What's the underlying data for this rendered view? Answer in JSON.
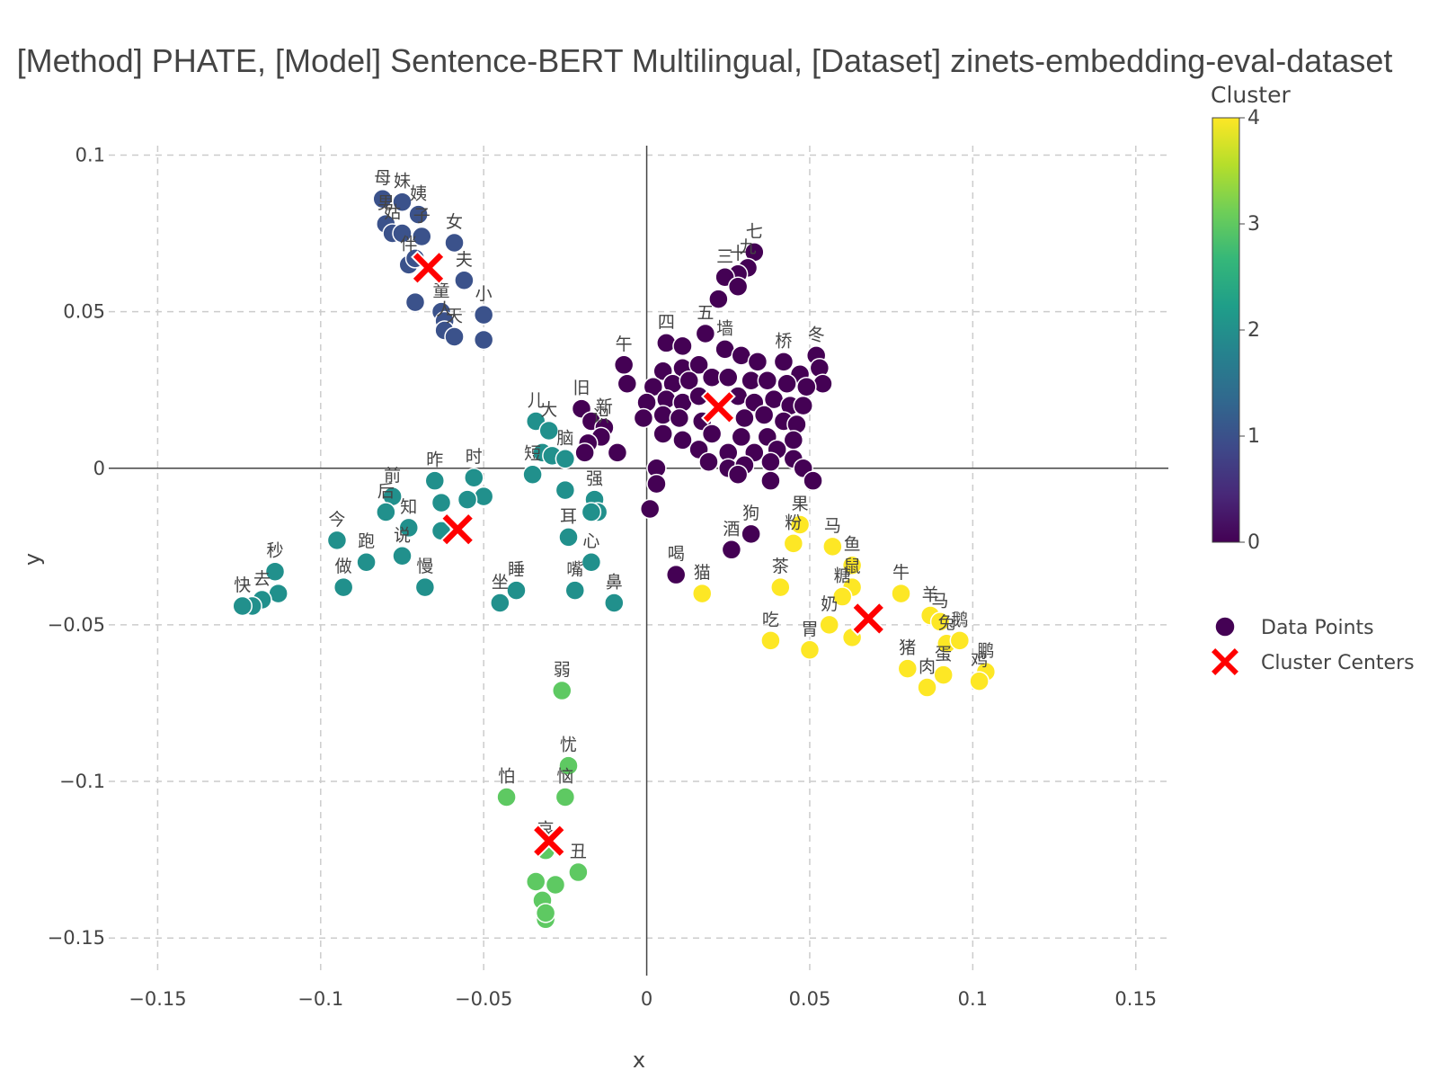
{
  "chart_data": {
    "type": "scatter",
    "title": "[Method] PHATE, [Model] Sentence-BERT Multilingual, [Dataset] zinets-embedding-eval-dataset",
    "xlabel": "x",
    "ylabel": "y",
    "xlim": [
      -0.165,
      0.16
    ],
    "ylim": [
      -0.162,
      0.103
    ],
    "x_ticks": [
      -0.15,
      -0.1,
      -0.05,
      0,
      0.05,
      0.1,
      0.15
    ],
    "x_tick_labels": [
      "−0.15",
      "−0.1",
      "−0.05",
      "0",
      "0.05",
      "0.1",
      "0.15"
    ],
    "y_ticks": [
      0.1,
      0.05,
      0,
      -0.05,
      -0.1,
      -0.15
    ],
    "y_tick_labels": [
      "0.1",
      "0.05",
      "0",
      "−0.05",
      "−0.1",
      "−0.15"
    ],
    "grid": true,
    "legend": [
      {
        "name": "Data Points",
        "marker": "circle",
        "color": "#440154"
      },
      {
        "name": "Cluster Centers",
        "marker": "x",
        "color": "#ff0000"
      }
    ],
    "legend_position": "right",
    "colorbar": {
      "title": "Cluster",
      "min": 0,
      "max": 4,
      "tick_labels": [
        "0",
        "1",
        "2",
        "3",
        "4"
      ],
      "colorscale": [
        "#440154",
        "#482878",
        "#3e4989",
        "#31688e",
        "#26828e",
        "#1f9e89",
        "#35b779",
        "#6ece58",
        "#b5de2b",
        "#fde725"
      ]
    },
    "cluster_colors": [
      "#440154",
      "#3b528b",
      "#21908c",
      "#5ec962",
      "#fde725"
    ],
    "marker_outline": "#ffffff",
    "center_color": "#ff0000",
    "centers": [
      {
        "cluster": 0,
        "x": 0.022,
        "y": 0.0195
      },
      {
        "cluster": 1,
        "x": -0.067,
        "y": 0.064
      },
      {
        "cluster": 2,
        "x": -0.058,
        "y": -0.0195
      },
      {
        "cluster": 3,
        "x": -0.03,
        "y": -0.119
      },
      {
        "cluster": 4,
        "x": 0.068,
        "y": -0.048
      }
    ],
    "points": [
      {
        "label": "母",
        "x": -0.081,
        "y": 0.086,
        "c": 1
      },
      {
        "label": "妹",
        "x": -0.075,
        "y": 0.085,
        "c": 1
      },
      {
        "label": "姨",
        "x": -0.07,
        "y": 0.081,
        "c": 1
      },
      {
        "label": "男",
        "x": -0.08,
        "y": 0.078,
        "c": 1
      },
      {
        "label": "姑",
        "x": -0.078,
        "y": 0.075,
        "c": 1
      },
      {
        "label": "",
        "x": -0.075,
        "y": 0.075,
        "c": 1
      },
      {
        "label": "子",
        "x": -0.069,
        "y": 0.074,
        "c": 1
      },
      {
        "label": "女",
        "x": -0.059,
        "y": 0.072,
        "c": 1
      },
      {
        "label": "伴",
        "x": -0.073,
        "y": 0.065,
        "c": 1
      },
      {
        "label": "",
        "x": -0.071,
        "y": 0.067,
        "c": 1
      },
      {
        "label": "夫",
        "x": -0.056,
        "y": 0.06,
        "c": 1
      },
      {
        "label": "",
        "x": -0.071,
        "y": 0.053,
        "c": 1
      },
      {
        "label": "童",
        "x": -0.063,
        "y": 0.05,
        "c": 1
      },
      {
        "label": "",
        "x": -0.062,
        "y": 0.047,
        "c": 1
      },
      {
        "label": "人",
        "x": -0.062,
        "y": 0.044,
        "c": 1
      },
      {
        "label": "天",
        "x": -0.059,
        "y": 0.042,
        "c": 1
      },
      {
        "label": "小",
        "x": -0.05,
        "y": 0.049,
        "c": 1
      },
      {
        "label": "",
        "x": -0.05,
        "y": 0.041,
        "c": 1
      },
      {
        "label": "七",
        "x": 0.033,
        "y": 0.069,
        "c": 0
      },
      {
        "label": "九",
        "x": 0.031,
        "y": 0.064,
        "c": 0
      },
      {
        "label": "十",
        "x": 0.028,
        "y": 0.062,
        "c": 0
      },
      {
        "label": "三",
        "x": 0.024,
        "y": 0.061,
        "c": 0
      },
      {
        "label": "",
        "x": 0.028,
        "y": 0.058,
        "c": 0
      },
      {
        "label": "",
        "x": 0.022,
        "y": 0.054,
        "c": 0
      },
      {
        "label": "五",
        "x": 0.018,
        "y": 0.043,
        "c": 0
      },
      {
        "label": "四",
        "x": 0.006,
        "y": 0.04,
        "c": 0
      },
      {
        "label": "",
        "x": 0.011,
        "y": 0.039,
        "c": 0
      },
      {
        "label": "午",
        "x": -0.007,
        "y": 0.033,
        "c": 0
      },
      {
        "label": "",
        "x": 0.005,
        "y": 0.031,
        "c": 0
      },
      {
        "label": "",
        "x": 0.011,
        "y": 0.032,
        "c": 0
      },
      {
        "label": "",
        "x": 0.016,
        "y": 0.033,
        "c": 0
      },
      {
        "label": "墙",
        "x": 0.024,
        "y": 0.038,
        "c": 0
      },
      {
        "label": "",
        "x": 0.029,
        "y": 0.036,
        "c": 0
      },
      {
        "label": "",
        "x": 0.034,
        "y": 0.034,
        "c": 0
      },
      {
        "label": "桥",
        "x": 0.042,
        "y": 0.034,
        "c": 0
      },
      {
        "label": "冬",
        "x": 0.052,
        "y": 0.036,
        "c": 0
      },
      {
        "label": "",
        "x": 0.053,
        "y": 0.032,
        "c": 0
      },
      {
        "label": "",
        "x": 0.047,
        "y": 0.03,
        "c": 0
      },
      {
        "label": "",
        "x": 0.054,
        "y": 0.027,
        "c": 0
      },
      {
        "label": "",
        "x": -0.006,
        "y": 0.027,
        "c": 0
      },
      {
        "label": "",
        "x": 0.002,
        "y": 0.026,
        "c": 0
      },
      {
        "label": "",
        "x": 0.008,
        "y": 0.027,
        "c": 0
      },
      {
        "label": "",
        "x": 0.013,
        "y": 0.028,
        "c": 0
      },
      {
        "label": "",
        "x": 0.02,
        "y": 0.029,
        "c": 0
      },
      {
        "label": "",
        "x": 0.025,
        "y": 0.029,
        "c": 0
      },
      {
        "label": "",
        "x": 0.032,
        "y": 0.028,
        "c": 0
      },
      {
        "label": "",
        "x": 0.037,
        "y": 0.028,
        "c": 0
      },
      {
        "label": "",
        "x": 0.043,
        "y": 0.027,
        "c": 0
      },
      {
        "label": "",
        "x": 0.049,
        "y": 0.026,
        "c": 0
      },
      {
        "label": "",
        "x": 0.0,
        "y": 0.021,
        "c": 0
      },
      {
        "label": "",
        "x": 0.006,
        "y": 0.022,
        "c": 0
      },
      {
        "label": "",
        "x": 0.011,
        "y": 0.021,
        "c": 0
      },
      {
        "label": "",
        "x": 0.016,
        "y": 0.023,
        "c": 0
      },
      {
        "label": "",
        "x": 0.028,
        "y": 0.023,
        "c": 0
      },
      {
        "label": "",
        "x": 0.033,
        "y": 0.021,
        "c": 0
      },
      {
        "label": "",
        "x": 0.039,
        "y": 0.022,
        "c": 0
      },
      {
        "label": "",
        "x": 0.044,
        "y": 0.02,
        "c": 0
      },
      {
        "label": "",
        "x": 0.048,
        "y": 0.02,
        "c": 0
      },
      {
        "label": "旧",
        "x": -0.02,
        "y": 0.019,
        "c": 0
      },
      {
        "label": "",
        "x": -0.017,
        "y": 0.015,
        "c": 0
      },
      {
        "label": "新",
        "x": -0.013,
        "y": 0.013,
        "c": 0
      },
      {
        "label": "识",
        "x": -0.014,
        "y": 0.01,
        "c": 0
      },
      {
        "label": "",
        "x": -0.018,
        "y": 0.008,
        "c": 0
      },
      {
        "label": "",
        "x": -0.019,
        "y": 0.005,
        "c": 0
      },
      {
        "label": "",
        "x": -0.009,
        "y": 0.005,
        "c": 0
      },
      {
        "label": "",
        "x": -0.001,
        "y": 0.016,
        "c": 0
      },
      {
        "label": "",
        "x": 0.005,
        "y": 0.017,
        "c": 0
      },
      {
        "label": "",
        "x": 0.01,
        "y": 0.016,
        "c": 0
      },
      {
        "label": "",
        "x": 0.017,
        "y": 0.015,
        "c": 0
      },
      {
        "label": "",
        "x": 0.03,
        "y": 0.016,
        "c": 0
      },
      {
        "label": "",
        "x": 0.036,
        "y": 0.017,
        "c": 0
      },
      {
        "label": "",
        "x": 0.042,
        "y": 0.015,
        "c": 0
      },
      {
        "label": "",
        "x": 0.046,
        "y": 0.014,
        "c": 0
      },
      {
        "label": "",
        "x": 0.005,
        "y": 0.011,
        "c": 0
      },
      {
        "label": "",
        "x": 0.011,
        "y": 0.009,
        "c": 0
      },
      {
        "label": "",
        "x": 0.02,
        "y": 0.011,
        "c": 0
      },
      {
        "label": "",
        "x": 0.029,
        "y": 0.01,
        "c": 0
      },
      {
        "label": "",
        "x": 0.037,
        "y": 0.01,
        "c": 0
      },
      {
        "label": "",
        "x": 0.045,
        "y": 0.009,
        "c": 0
      },
      {
        "label": "",
        "x": 0.016,
        "y": 0.006,
        "c": 0
      },
      {
        "label": "",
        "x": 0.025,
        "y": 0.005,
        "c": 0
      },
      {
        "label": "",
        "x": 0.033,
        "y": 0.005,
        "c": 0
      },
      {
        "label": "",
        "x": 0.04,
        "y": 0.006,
        "c": 0
      },
      {
        "label": "",
        "x": 0.019,
        "y": 0.002,
        "c": 0
      },
      {
        "label": "",
        "x": 0.025,
        "y": 0.0,
        "c": 0
      },
      {
        "label": "",
        "x": 0.03,
        "y": 0.001,
        "c": 0
      },
      {
        "label": "",
        "x": 0.038,
        "y": 0.002,
        "c": 0
      },
      {
        "label": "",
        "x": 0.045,
        "y": 0.003,
        "c": 0
      },
      {
        "label": "",
        "x": 0.048,
        "y": 0.0,
        "c": 0
      },
      {
        "label": "",
        "x": 0.028,
        "y": -0.002,
        "c": 0
      },
      {
        "label": "",
        "x": 0.038,
        "y": -0.004,
        "c": 0
      },
      {
        "label": "",
        "x": 0.051,
        "y": -0.004,
        "c": 0
      },
      {
        "label": "",
        "x": 0.003,
        "y": 0.0,
        "c": 0
      },
      {
        "label": "",
        "x": 0.003,
        "y": -0.005,
        "c": 0
      },
      {
        "label": "",
        "x": 0.001,
        "y": -0.013,
        "c": 0
      },
      {
        "label": "狗",
        "x": 0.032,
        "y": -0.021,
        "c": 0
      },
      {
        "label": "酒",
        "x": 0.026,
        "y": -0.026,
        "c": 0
      },
      {
        "label": "喝",
        "x": 0.009,
        "y": -0.034,
        "c": 0
      },
      {
        "label": "儿",
        "x": -0.034,
        "y": 0.015,
        "c": 2
      },
      {
        "label": "大",
        "x": -0.03,
        "y": 0.012,
        "c": 2
      },
      {
        "label": "",
        "x": -0.032,
        "y": 0.005,
        "c": 2
      },
      {
        "label": "",
        "x": -0.029,
        "y": 0.004,
        "c": 2
      },
      {
        "label": "脑",
        "x": -0.025,
        "y": 0.003,
        "c": 2
      },
      {
        "label": "短",
        "x": -0.035,
        "y": -0.002,
        "c": 2
      },
      {
        "label": "",
        "x": -0.025,
        "y": -0.007,
        "c": 2
      },
      {
        "label": "强",
        "x": -0.016,
        "y": -0.01,
        "c": 2
      },
      {
        "label": "",
        "x": -0.015,
        "y": -0.014,
        "c": 2
      },
      {
        "label": "",
        "x": -0.017,
        "y": -0.014,
        "c": 2
      },
      {
        "label": "时",
        "x": -0.053,
        "y": -0.003,
        "c": 2
      },
      {
        "label": "",
        "x": -0.05,
        "y": -0.009,
        "c": 2
      },
      {
        "label": "昨",
        "x": -0.065,
        "y": -0.004,
        "c": 2
      },
      {
        "label": "",
        "x": -0.055,
        "y": -0.01,
        "c": 2
      },
      {
        "label": "",
        "x": -0.063,
        "y": -0.011,
        "c": 2
      },
      {
        "label": "前",
        "x": -0.078,
        "y": -0.009,
        "c": 2
      },
      {
        "label": "后",
        "x": -0.08,
        "y": -0.014,
        "c": 2
      },
      {
        "label": "知",
        "x": -0.073,
        "y": -0.019,
        "c": 2
      },
      {
        "label": "",
        "x": -0.063,
        "y": -0.02,
        "c": 2
      },
      {
        "label": "今",
        "x": -0.095,
        "y": -0.023,
        "c": 2
      },
      {
        "label": "跑",
        "x": -0.086,
        "y": -0.03,
        "c": 2
      },
      {
        "label": "说",
        "x": -0.075,
        "y": -0.028,
        "c": 2
      },
      {
        "label": "慢",
        "x": -0.068,
        "y": -0.038,
        "c": 2
      },
      {
        "label": "做",
        "x": -0.093,
        "y": -0.038,
        "c": 2
      },
      {
        "label": "耳",
        "x": -0.024,
        "y": -0.022,
        "c": 2
      },
      {
        "label": "心",
        "x": -0.017,
        "y": -0.03,
        "c": 2
      },
      {
        "label": "睡",
        "x": -0.04,
        "y": -0.039,
        "c": 2
      },
      {
        "label": "坐",
        "x": -0.045,
        "y": -0.043,
        "c": 2
      },
      {
        "label": "嘴",
        "x": -0.022,
        "y": -0.039,
        "c": 2
      },
      {
        "label": "鼻",
        "x": -0.01,
        "y": -0.043,
        "c": 2
      },
      {
        "label": "秒",
        "x": -0.114,
        "y": -0.033,
        "c": 2
      },
      {
        "label": "",
        "x": -0.113,
        "y": -0.04,
        "c": 2
      },
      {
        "label": "去",
        "x": -0.118,
        "y": -0.042,
        "c": 2
      },
      {
        "label": "",
        "x": -0.121,
        "y": -0.044,
        "c": 2
      },
      {
        "label": "快",
        "x": -0.124,
        "y": -0.044,
        "c": 2
      },
      {
        "label": "弱",
        "x": -0.026,
        "y": -0.071,
        "c": 3
      },
      {
        "label": "忧",
        "x": -0.024,
        "y": -0.095,
        "c": 3
      },
      {
        "label": "怕",
        "x": -0.043,
        "y": -0.105,
        "c": 3
      },
      {
        "label": "恼",
        "x": -0.025,
        "y": -0.105,
        "c": 3
      },
      {
        "label": "哀",
        "x": -0.031,
        "y": -0.122,
        "c": 3
      },
      {
        "label": "丑",
        "x": -0.021,
        "y": -0.129,
        "c": 3
      },
      {
        "label": "",
        "x": -0.028,
        "y": -0.133,
        "c": 3
      },
      {
        "label": "",
        "x": -0.034,
        "y": -0.132,
        "c": 3
      },
      {
        "label": "",
        "x": -0.032,
        "y": -0.138,
        "c": 3
      },
      {
        "label": "",
        "x": -0.031,
        "y": -0.144,
        "c": 3
      },
      {
        "label": "",
        "x": -0.031,
        "y": -0.142,
        "c": 3
      },
      {
        "label": "果",
        "x": 0.047,
        "y": -0.018,
        "c": 4
      },
      {
        "label": "粉",
        "x": 0.045,
        "y": -0.024,
        "c": 4
      },
      {
        "label": "马",
        "x": 0.057,
        "y": -0.025,
        "c": 4
      },
      {
        "label": "鱼",
        "x": 0.063,
        "y": -0.031,
        "c": 4
      },
      {
        "label": "鼠",
        "x": 0.063,
        "y": -0.038,
        "c": 4
      },
      {
        "label": "糖",
        "x": 0.06,
        "y": -0.041,
        "c": 4
      },
      {
        "label": "茶",
        "x": 0.041,
        "y": -0.038,
        "c": 4
      },
      {
        "label": "牛",
        "x": 0.078,
        "y": -0.04,
        "c": 4
      },
      {
        "label": "猫",
        "x": 0.017,
        "y": -0.04,
        "c": 4
      },
      {
        "label": "奶",
        "x": 0.056,
        "y": -0.05,
        "c": 4
      },
      {
        "label": "",
        "x": 0.063,
        "y": -0.054,
        "c": 4
      },
      {
        "label": "吃",
        "x": 0.038,
        "y": -0.055,
        "c": 4
      },
      {
        "label": "胃",
        "x": 0.05,
        "y": -0.058,
        "c": 4
      },
      {
        "label": "羊",
        "x": 0.087,
        "y": -0.047,
        "c": 4
      },
      {
        "label": "马",
        "x": 0.09,
        "y": -0.049,
        "c": 4
      },
      {
        "label": "兔",
        "x": 0.092,
        "y": -0.056,
        "c": 4
      },
      {
        "label": "鹅",
        "x": 0.096,
        "y": -0.055,
        "c": 4
      },
      {
        "label": "猪",
        "x": 0.08,
        "y": -0.064,
        "c": 4
      },
      {
        "label": "蛋",
        "x": 0.091,
        "y": -0.066,
        "c": 4
      },
      {
        "label": "肉",
        "x": 0.086,
        "y": -0.07,
        "c": 4
      },
      {
        "label": "鹏",
        "x": 0.104,
        "y": -0.065,
        "c": 4
      },
      {
        "label": "鸡",
        "x": 0.102,
        "y": -0.068,
        "c": 4
      }
    ]
  }
}
